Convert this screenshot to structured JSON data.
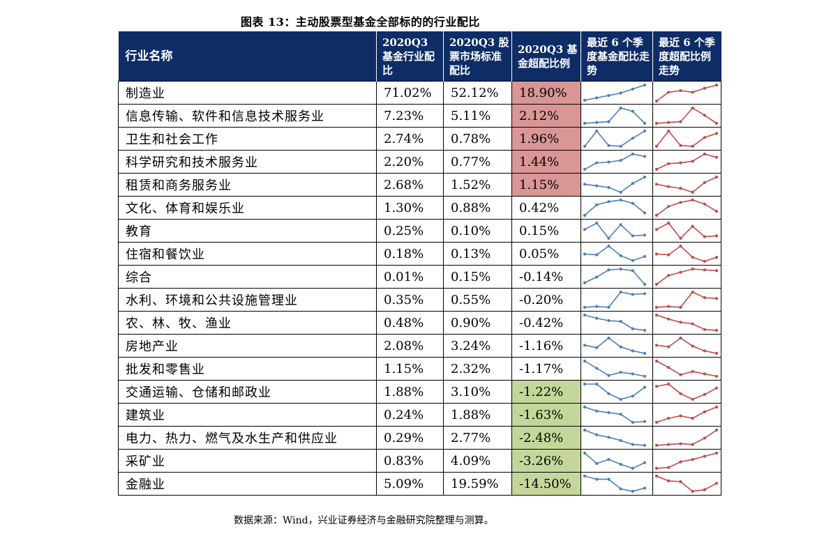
{
  "title": "图表 13：主动股票型基金全部标的的行业配比",
  "headers": {
    "name": "行业名称",
    "col1": "2020Q3 基金行业配比",
    "col2": "2020Q3 股票市场标准配比",
    "col3": "2020Q3 基金超配比例",
    "col4": "最近 6 个季度基金配比走势",
    "col5": "最近 6 个季度超配比例走势"
  },
  "colors": {
    "header": "#0e2c66",
    "overweight": "#d99694",
    "underweight": "#c4d79b",
    "spark_fund": "#4a7ebb",
    "spark_excess": "#be4b48"
  },
  "rows": [
    {
      "name": "制造业",
      "fund": "71.02%",
      "market": "52.12%",
      "excess": "18.90%",
      "hl": "pos",
      "s1": [
        0.05,
        0.2,
        0.35,
        0.5,
        0.75,
        1.0
      ],
      "s2": [
        0.0,
        0.55,
        0.65,
        0.55,
        0.8,
        1.0
      ]
    },
    {
      "name": "信息传输、软件和信息技术服务业",
      "fund": "7.23%",
      "market": "5.11%",
      "excess": "2.12%",
      "hl": "pos",
      "s1": [
        0.05,
        0.1,
        0.15,
        1.0,
        0.8,
        0.05
      ],
      "s2": [
        0.05,
        0.1,
        0.15,
        1.0,
        0.55,
        0.05
      ]
    },
    {
      "name": "卫生和社会工作",
      "fund": "2.74%",
      "market": "0.78%",
      "excess": "1.96%",
      "hl": "pos",
      "s1": [
        0.05,
        1.0,
        0.1,
        0.05,
        0.55,
        1.0
      ],
      "s2": [
        0.05,
        1.0,
        0.1,
        0.05,
        0.6,
        0.85
      ]
    },
    {
      "name": "科学研究和技术服务业",
      "fund": "2.20%",
      "market": "0.77%",
      "excess": "1.44%",
      "hl": "pos",
      "s1": [
        0.05,
        0.45,
        0.5,
        0.6,
        1.0,
        0.85
      ],
      "s2": [
        0.05,
        0.4,
        0.45,
        0.55,
        1.0,
        0.8
      ]
    },
    {
      "name": "租赁和商务服务业",
      "fund": "2.68%",
      "market": "1.52%",
      "excess": "1.15%",
      "hl": "pos",
      "s1": [
        0.55,
        0.45,
        0.35,
        0.05,
        0.6,
        1.0
      ],
      "s2": [
        0.55,
        0.4,
        0.3,
        0.05,
        0.65,
        1.0
      ]
    },
    {
      "name": "文化、体育和娱乐业",
      "fund": "1.30%",
      "market": "0.88%",
      "excess": "0.42%",
      "hl": "",
      "s1": [
        0.05,
        0.7,
        0.9,
        1.0,
        0.8,
        0.2
      ],
      "s2": [
        0.05,
        0.6,
        0.85,
        1.0,
        0.75,
        0.3
      ]
    },
    {
      "name": "教育",
      "fund": "0.25%",
      "market": "0.10%",
      "excess": "0.15%",
      "hl": "",
      "s1": [
        0.6,
        1.0,
        0.05,
        0.9,
        0.2,
        0.25
      ],
      "s2": [
        0.6,
        1.0,
        0.05,
        0.8,
        0.15,
        0.2
      ]
    },
    {
      "name": "住宿和餐饮业",
      "fund": "0.18%",
      "market": "0.13%",
      "excess": "0.05%",
      "hl": "",
      "s1": [
        0.5,
        0.45,
        1.0,
        0.4,
        0.1,
        0.35
      ],
      "s2": [
        0.5,
        0.45,
        1.0,
        0.3,
        0.05,
        0.3
      ]
    },
    {
      "name": "综合",
      "fund": "0.01%",
      "market": "0.15%",
      "excess": "-0.14%",
      "hl": "",
      "s1": [
        0.15,
        0.5,
        0.95,
        1.0,
        0.9,
        0.05
      ],
      "s2": [
        0.05,
        0.6,
        0.8,
        1.0,
        0.95,
        0.9
      ]
    },
    {
      "name": "水利、环境和公共设施管理业",
      "fund": "0.35%",
      "market": "0.55%",
      "excess": "-0.20%",
      "hl": "",
      "s1": [
        0.05,
        0.1,
        0.05,
        1.0,
        0.85,
        0.9
      ],
      "s2": [
        0.05,
        0.1,
        0.05,
        1.0,
        0.65,
        0.6
      ]
    },
    {
      "name": "农、林、牧、渔业",
      "fund": "0.48%",
      "market": "0.90%",
      "excess": "-0.42%",
      "hl": "",
      "s1": [
        1.0,
        0.8,
        0.65,
        0.6,
        0.15,
        0.05
      ],
      "s2": [
        1.0,
        0.75,
        0.55,
        0.45,
        0.1,
        0.05
      ]
    },
    {
      "name": "房地产业",
      "fund": "2.08%",
      "market": "3.24%",
      "excess": "-1.16%",
      "hl": "",
      "s1": [
        0.55,
        0.4,
        1.0,
        0.45,
        0.2,
        0.05
      ],
      "s2": [
        0.55,
        0.45,
        1.0,
        0.5,
        0.2,
        0.05
      ]
    },
    {
      "name": "批发和零售业",
      "fund": "1.15%",
      "market": "2.32%",
      "excess": "-1.17%",
      "hl": "",
      "s1": [
        1.0,
        0.55,
        0.1,
        0.3,
        0.2,
        0.05
      ],
      "s2": [
        1.0,
        0.6,
        0.15,
        0.35,
        0.2,
        0.05
      ]
    },
    {
      "name": "交通运输、仓储和邮政业",
      "fund": "1.88%",
      "market": "3.10%",
      "excess": "-1.22%",
      "hl": "neg",
      "s1": [
        1.0,
        1.0,
        0.4,
        0.05,
        0.25,
        0.8
      ],
      "s2": [
        0.85,
        1.0,
        0.4,
        0.05,
        0.35,
        0.75
      ]
    },
    {
      "name": "建筑业",
      "fund": "0.24%",
      "market": "1.88%",
      "excess": "-1.63%",
      "hl": "neg",
      "s1": [
        1.0,
        0.75,
        0.65,
        0.55,
        0.05,
        0.1
      ],
      "s2": [
        0.05,
        0.3,
        0.45,
        0.3,
        0.7,
        1.0
      ]
    },
    {
      "name": "电力、热力、燃气及水生产和供应业",
      "fund": "0.29%",
      "market": "2.77%",
      "excess": "-2.48%",
      "hl": "neg",
      "s1": [
        1.0,
        0.7,
        0.55,
        0.35,
        0.1,
        0.05
      ],
      "s2": [
        0.05,
        0.1,
        0.15,
        0.1,
        0.5,
        1.0
      ]
    },
    {
      "name": "采矿业",
      "fund": "0.83%",
      "market": "4.09%",
      "excess": "-3.26%",
      "hl": "neg",
      "s1": [
        1.0,
        0.35,
        0.6,
        0.3,
        0.05,
        0.4
      ],
      "s2": [
        0.05,
        0.1,
        0.45,
        0.6,
        0.8,
        1.0
      ]
    },
    {
      "name": "金融业",
      "fund": "5.09%",
      "market": "19.59%",
      "excess": "-14.50%",
      "hl": "neg",
      "s1": [
        1.0,
        0.8,
        0.8,
        0.2,
        0.05,
        0.25
      ],
      "s2": [
        1.0,
        0.7,
        0.65,
        0.05,
        0.15,
        0.55
      ]
    }
  ],
  "source": "数据来源：Wind，兴业证券经济与金融研究院整理与测算。"
}
